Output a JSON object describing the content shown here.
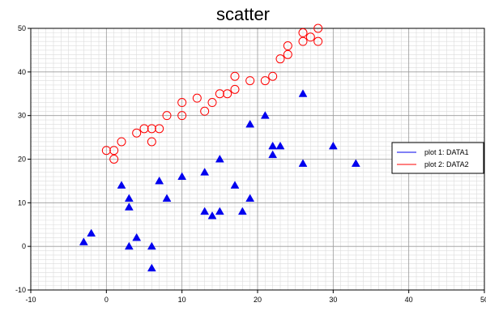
{
  "chart_data": {
    "type": "scatter",
    "title": "scatter",
    "xlabel": "",
    "ylabel": "",
    "xlim": [
      -10,
      50
    ],
    "ylim": [
      -10,
      50
    ],
    "xticks": [
      "-10",
      "0",
      "10",
      "20",
      "30",
      "40",
      "50"
    ],
    "yticks": [
      "-10",
      "0",
      "10",
      "20",
      "30",
      "40",
      "50"
    ],
    "grid": true,
    "legend_position": "right",
    "series": [
      {
        "name": "plot 1: DATA1",
        "marker": "triangle",
        "color": "#0000ee",
        "points": [
          [
            -3,
            1
          ],
          [
            -2,
            3
          ],
          [
            2,
            14
          ],
          [
            3,
            11
          ],
          [
            3,
            9
          ],
          [
            3,
            0
          ],
          [
            4,
            2
          ],
          [
            6,
            0
          ],
          [
            6,
            -5
          ],
          [
            7,
            15
          ],
          [
            8,
            11
          ],
          [
            10,
            16
          ],
          [
            13,
            17
          ],
          [
            13,
            8
          ],
          [
            14,
            7
          ],
          [
            15,
            8
          ],
          [
            15,
            20
          ],
          [
            17,
            14
          ],
          [
            18,
            8
          ],
          [
            19,
            11
          ],
          [
            19,
            28
          ],
          [
            21,
            30
          ],
          [
            22,
            23
          ],
          [
            22,
            21
          ],
          [
            23,
            23
          ],
          [
            26,
            35
          ],
          [
            26,
            19
          ],
          [
            30,
            23
          ],
          [
            33,
            19
          ]
        ]
      },
      {
        "name": "plot 2: DATA2",
        "marker": "circle",
        "color": "#ff0000",
        "points": [
          [
            0,
            22
          ],
          [
            1,
            22
          ],
          [
            1,
            20
          ],
          [
            2,
            24
          ],
          [
            4,
            26
          ],
          [
            5,
            27
          ],
          [
            6,
            27
          ],
          [
            6,
            24
          ],
          [
            7,
            27
          ],
          [
            8,
            30
          ],
          [
            10,
            33
          ],
          [
            10,
            30
          ],
          [
            12,
            34
          ],
          [
            13,
            31
          ],
          [
            14,
            33
          ],
          [
            15,
            35
          ],
          [
            16,
            35
          ],
          [
            17,
            36
          ],
          [
            17,
            39
          ],
          [
            19,
            38
          ],
          [
            21,
            38
          ],
          [
            22,
            39
          ],
          [
            23,
            43
          ],
          [
            24,
            46
          ],
          [
            24,
            44
          ],
          [
            26,
            49
          ],
          [
            26,
            47
          ],
          [
            27,
            48
          ],
          [
            28,
            50
          ],
          [
            28,
            47
          ]
        ]
      }
    ]
  }
}
